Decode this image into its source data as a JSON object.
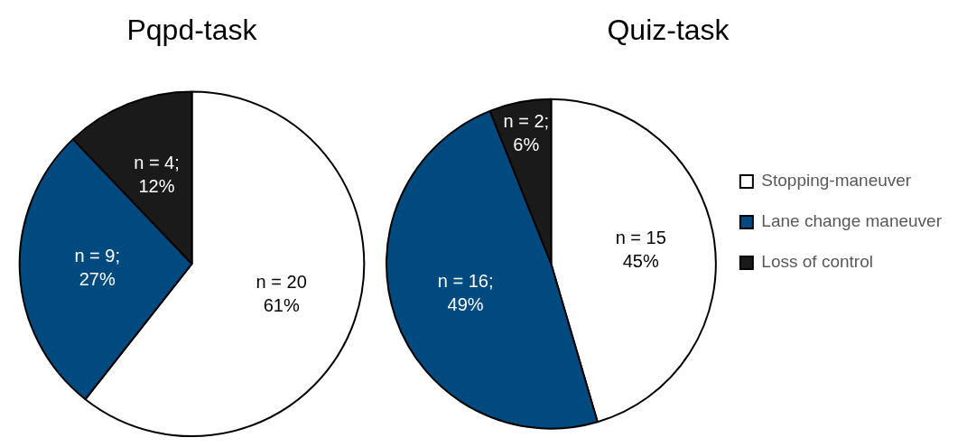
{
  "chart_data": [
    {
      "type": "pie",
      "title": "Pqpd-task",
      "values": [
        20,
        9,
        4
      ],
      "colors": [
        "#ffffff",
        "#004a80",
        "#1a1a1a"
      ],
      "value_labels": [
        "n = 20\n61%",
        "n = 9;\n27%",
        "n = 4;\n12%"
      ],
      "legend": false
    },
    {
      "type": "pie",
      "title": "Quiz-task",
      "categories": [
        "Stopping-maneuver",
        "Lane change maneuver",
        "Loss of control"
      ],
      "values": [
        15,
        16,
        2
      ],
      "colors": [
        "#ffffff",
        "#004a80",
        "#1a1a1a"
      ],
      "value_labels": [
        "n = 15\n45%",
        "n = 16;\n49%",
        "n = 2;\n6%"
      ],
      "legend": "right"
    }
  ]
}
